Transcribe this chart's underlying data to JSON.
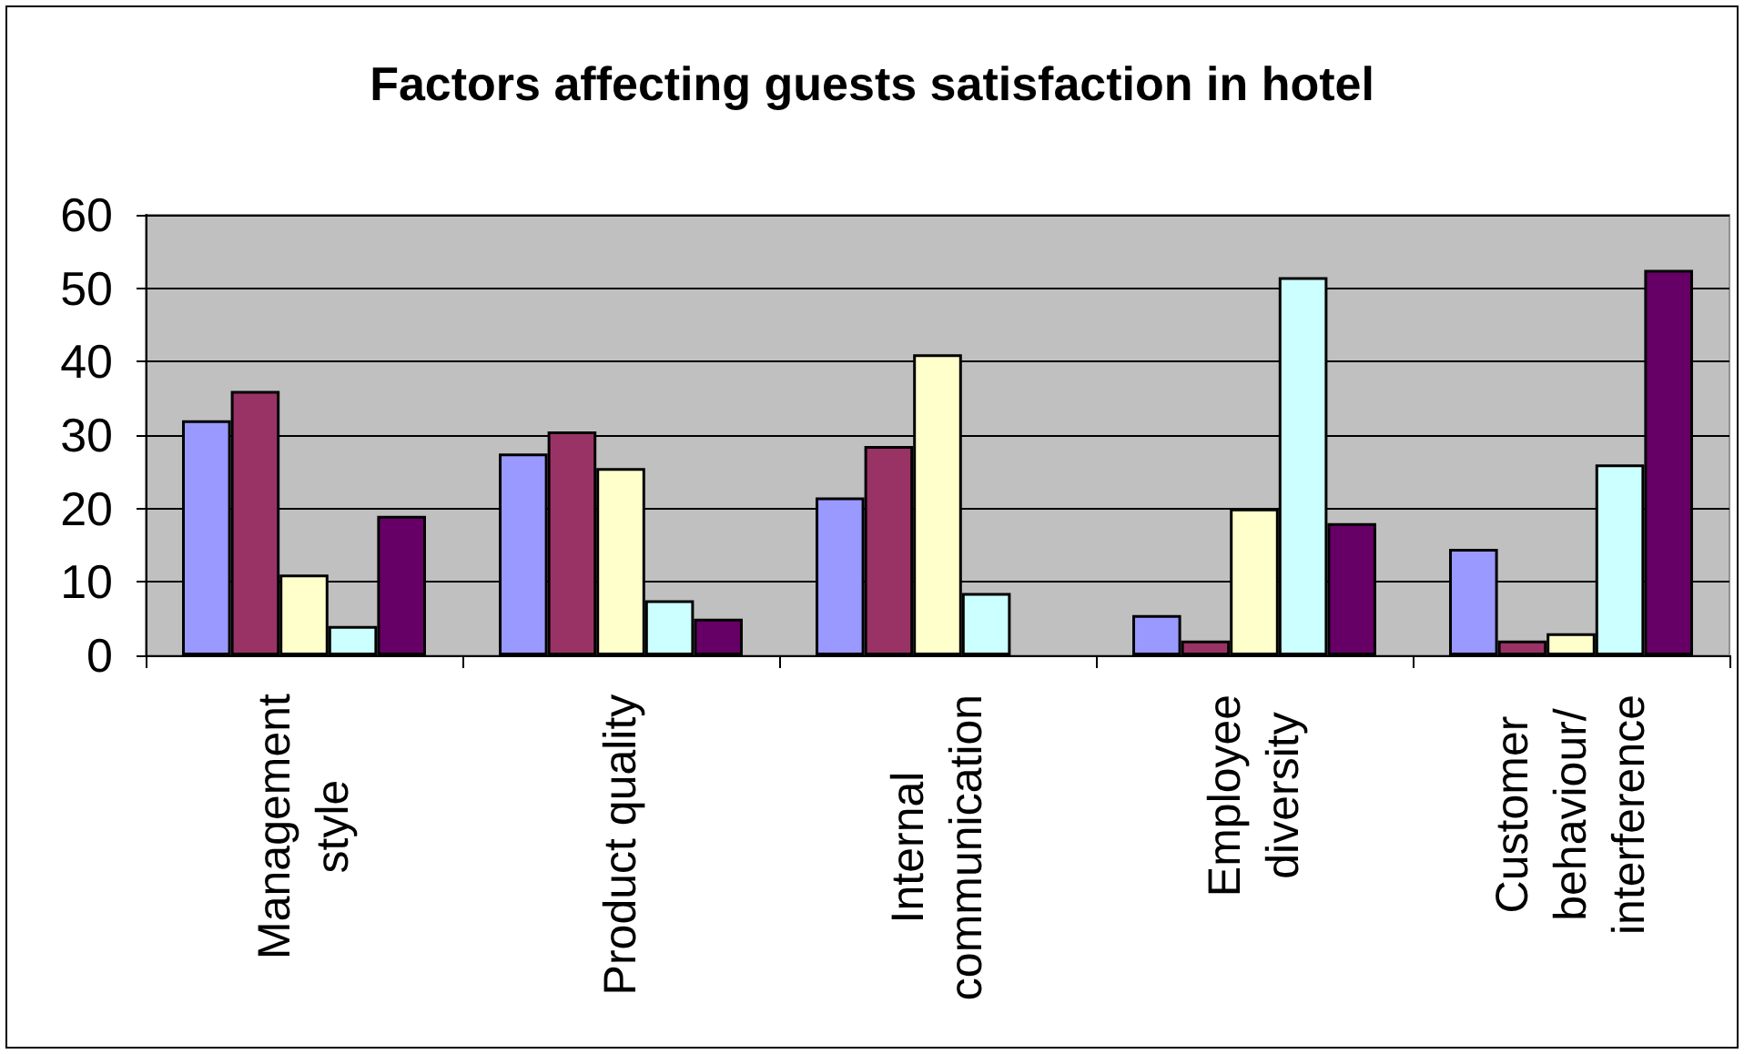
{
  "chart_data": {
    "type": "bar",
    "title": "Factors affecting guests satisfaction in hotel",
    "categories": [
      "Management style",
      "Product quality",
      "Internal communication",
      "Employee diversity",
      "Customer behaviour/ interference"
    ],
    "series": [
      {
        "color": "#9999ff",
        "values": [
          32,
          27.5,
          21.5,
          5.5,
          14.5
        ]
      },
      {
        "color": "#993366",
        "values": [
          36,
          30.5,
          28.5,
          2,
          2
        ]
      },
      {
        "color": "#ffffcc",
        "values": [
          11,
          25.5,
          41,
          20,
          3
        ]
      },
      {
        "color": "#ccffff",
        "values": [
          4,
          7.5,
          8.5,
          51.5,
          26
        ]
      },
      {
        "color": "#660066",
        "values": [
          19,
          5,
          null,
          18,
          52.5
        ]
      }
    ],
    "ylim": [
      0,
      60
    ],
    "yticks": [
      0,
      10,
      20,
      30,
      40,
      50,
      60
    ],
    "grid": "y"
  }
}
